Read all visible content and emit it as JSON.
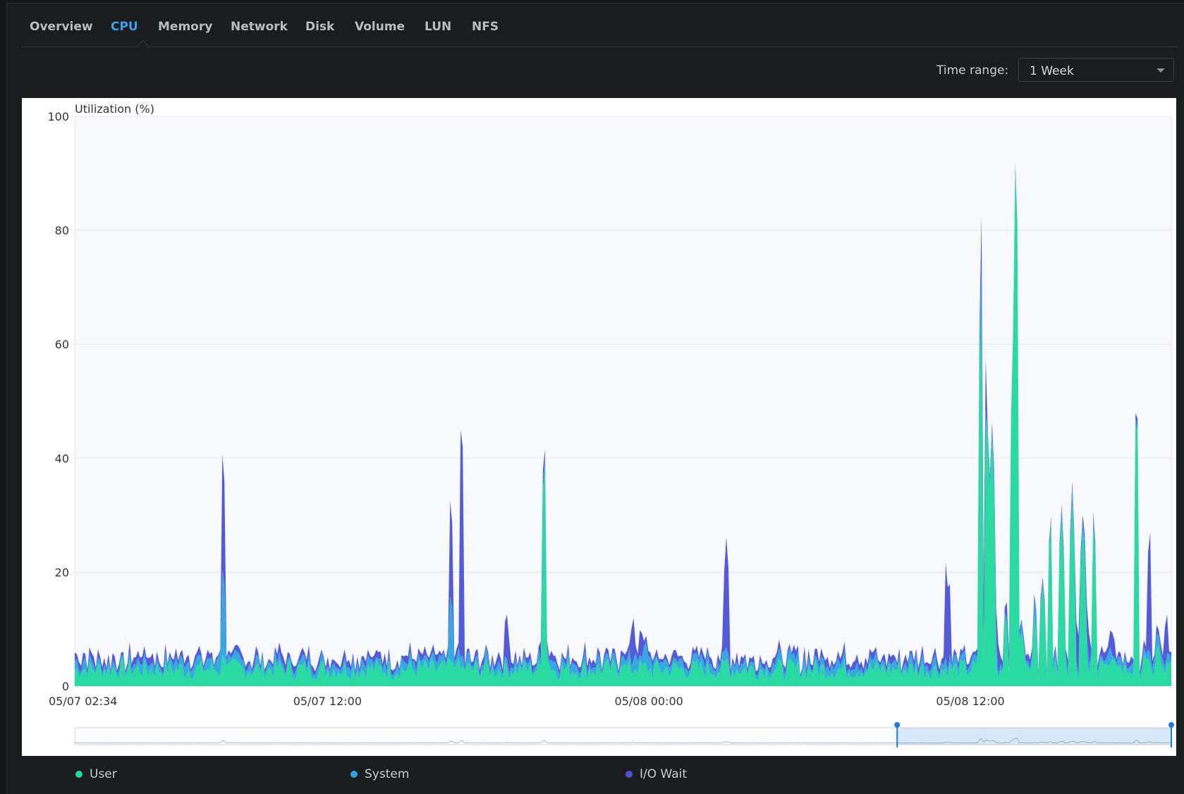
{
  "tabs": [
    {
      "label": "Overview",
      "active": false
    },
    {
      "label": "CPU",
      "active": true
    },
    {
      "label": "Memory",
      "active": false
    },
    {
      "label": "Network",
      "active": false
    },
    {
      "label": "Disk",
      "active": false
    },
    {
      "label": "Volume",
      "active": false
    },
    {
      "label": "LUN",
      "active": false
    },
    {
      "label": "NFS",
      "active": false
    }
  ],
  "time_range": {
    "label": "Time range:",
    "value": "1 Week"
  },
  "colors": {
    "user": "#1ed99b",
    "system": "#2aa4e0",
    "iowait": "#4a52d6",
    "accent": "#3ba0f0"
  },
  "chart_data": {
    "type": "area",
    "stacked": true,
    "ylabel": "Utilization (%)",
    "ylim": [
      0,
      100
    ],
    "yticks": [
      "0",
      "20",
      "40",
      "60",
      "80",
      "100"
    ],
    "xlim_hours": [
      2.567,
      43.5
    ],
    "xticks": [
      {
        "label": "05/07 02:34",
        "hour": 2.567
      },
      {
        "label": "05/07 12:00",
        "hour": 12
      },
      {
        "label": "05/08 00:00",
        "hour": 24
      },
      {
        "label": "05/08 12:00",
        "hour": 36
      }
    ],
    "series": [
      {
        "name": "User",
        "color": "#1ed99b",
        "baseline": 3,
        "spikes": [
          [
            8.1,
            6
          ],
          [
            8.2,
            4
          ],
          [
            16.6,
            5
          ],
          [
            16.8,
            4
          ],
          [
            20.1,
            42
          ],
          [
            20.2,
            5
          ],
          [
            23.0,
            4
          ],
          [
            23.5,
            3
          ],
          [
            26.9,
            5
          ],
          [
            36.2,
            3
          ],
          [
            36.4,
            68
          ],
          [
            36.6,
            52
          ],
          [
            36.8,
            45
          ],
          [
            37.3,
            13
          ],
          [
            37.6,
            61
          ],
          [
            37.7,
            98
          ],
          [
            37.9,
            10
          ],
          [
            38.4,
            13
          ],
          [
            38.7,
            18
          ],
          [
            39.0,
            30
          ],
          [
            39.4,
            30
          ],
          [
            39.8,
            32
          ],
          [
            40.2,
            28
          ],
          [
            40.6,
            29
          ],
          [
            40.9,
            5
          ],
          [
            41.5,
            4
          ],
          [
            42.2,
            52
          ],
          [
            42.5,
            6
          ],
          [
            43.0,
            8
          ]
        ]
      },
      {
        "name": "System",
        "color": "#2aa4e0",
        "baseline": 1.2,
        "spikes": [
          [
            8.0,
            4
          ],
          [
            8.1,
            16
          ],
          [
            16.6,
            12
          ],
          [
            17.0,
            2
          ],
          [
            23.5,
            3
          ],
          [
            23.9,
            4
          ],
          [
            26.9,
            2
          ],
          [
            35.1,
            2
          ],
          [
            36.4,
            10
          ],
          [
            36.9,
            6
          ],
          [
            37.6,
            2
          ],
          [
            38.4,
            3
          ],
          [
            39.8,
            3
          ],
          [
            40.3,
            5
          ],
          [
            41.2,
            3
          ],
          [
            42.9,
            3
          ]
        ]
      },
      {
        "name": "I/O Wait",
        "color": "#4a52d6",
        "baseline": 1.0,
        "spikes": [
          [
            8.1,
            22
          ],
          [
            16.6,
            18
          ],
          [
            17.0,
            44
          ],
          [
            18.7,
            8
          ],
          [
            20.0,
            4
          ],
          [
            23.4,
            8
          ],
          [
            23.7,
            5
          ],
          [
            26.9,
            20
          ],
          [
            35.1,
            18
          ],
          [
            35.2,
            14
          ],
          [
            36.5,
            12
          ],
          [
            37.0,
            6
          ],
          [
            37.4,
            3
          ],
          [
            40.0,
            8
          ],
          [
            40.4,
            6
          ],
          [
            41.3,
            4
          ],
          [
            42.7,
            22
          ],
          [
            43.3,
            8
          ]
        ]
      }
    ],
    "navigator": {
      "selected_start_fraction": 0.75,
      "selected_end_fraction": 1.0
    }
  }
}
